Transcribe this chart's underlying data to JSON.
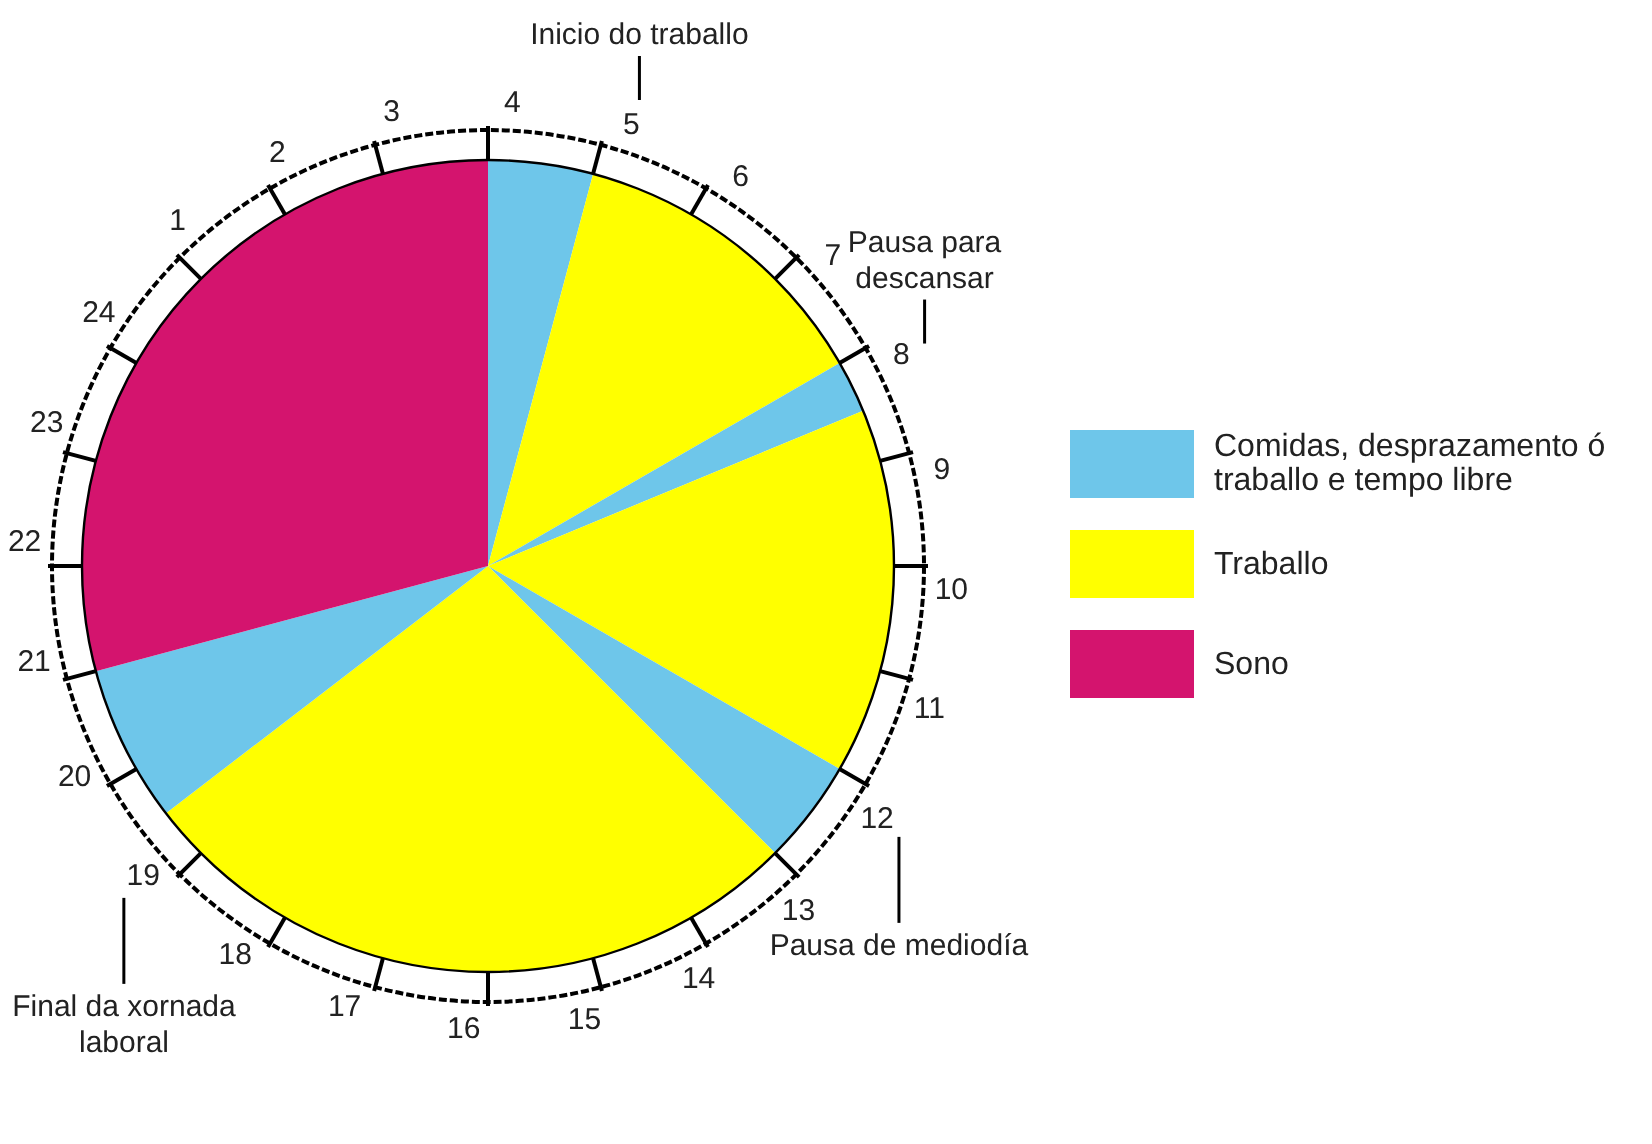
{
  "chart_data": {
    "type": "pie",
    "categories": [
      "Comidas, desprazamento ó traballo e tempo libre",
      "Traballo",
      null,
      null,
      null,
      null,
      null,
      "Sono"
    ],
    "values": [
      4.17,
      12.5,
      2.08,
      14.58,
      4.17,
      27.08,
      6.25,
      29.17
    ],
    "colors": [
      "#6ec6ea",
      "#ffff00",
      "#6ec6ea",
      "#ffff00",
      "#6ec6ea",
      "#ffff00",
      "#6ec6ea",
      "#d4146e"
    ],
    "annotations": [
      "4",
      "5",
      "6",
      "7",
      "8",
      "9",
      "10",
      "11",
      "12",
      "13",
      "14",
      "15",
      "16",
      "17",
      "18",
      "19",
      "20",
      "21",
      "22",
      "23",
      "24",
      "1",
      "2",
      "3",
      {
        "text": "Inicio do traballo",
        "x": "5"
      },
      {
        "text": "Pausa para descansar",
        "x": "8"
      },
      {
        "text": "Pausa de mediodía",
        "x": "12"
      },
      {
        "text": "Final da xornada laboral",
        "x": "19"
      }
    ],
    "legend": "right"
  }
}
